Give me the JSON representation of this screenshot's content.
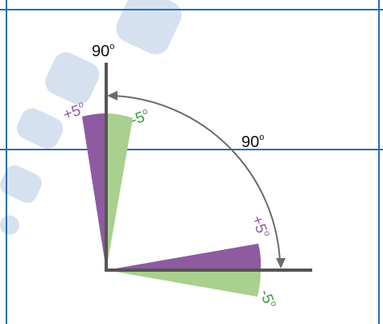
{
  "colors": {
    "frame_line": "#2c6fa8",
    "watermark": "#c9d7ec",
    "axis": "#555555",
    "arc": "#6b6b6b",
    "plus_wedge": "#8e5ba0",
    "minus_wedge": "#a9d08e",
    "plus_text": "#8e5ba0",
    "minus_text": "#3c9a3c",
    "black_text": "#111111"
  },
  "labels": {
    "vertical_angle": "90",
    "arc_angle": "90",
    "upper_plus": "+5",
    "upper_minus": "-5",
    "lower_plus": "+5",
    "lower_minus": "-5",
    "degree": "o"
  },
  "icons": {
    "watermark": "diagonal-watermark-shapes",
    "arrowhead": "arc-arrowhead"
  }
}
